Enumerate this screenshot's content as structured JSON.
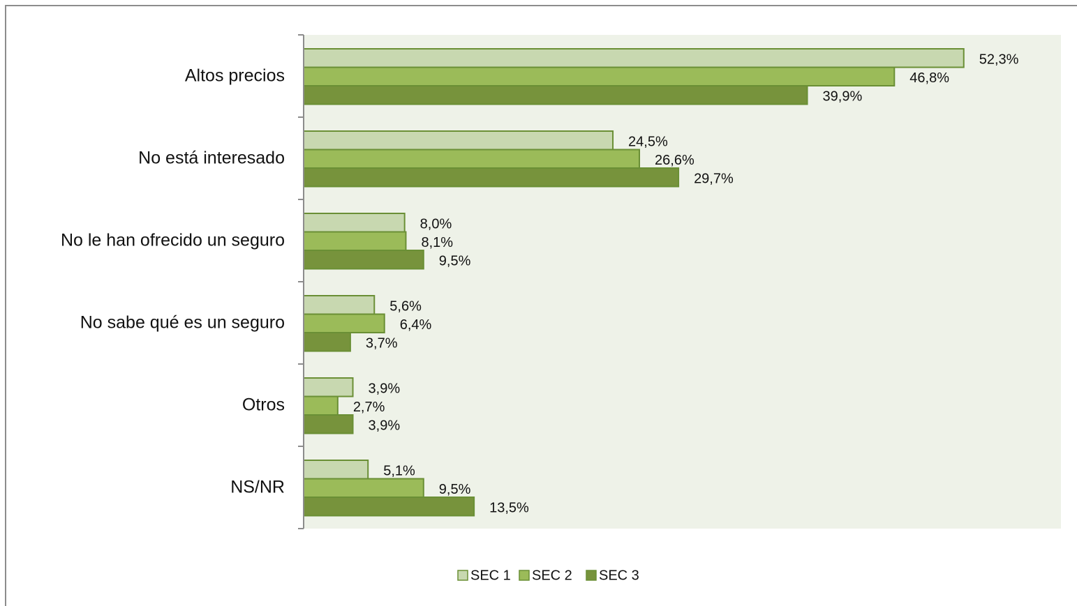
{
  "chart_data": {
    "type": "bar",
    "orientation": "horizontal",
    "categories": [
      "Altos precios",
      "No está interesado",
      "No le han ofrecido un seguro",
      "No sabe qué es un seguro",
      "Otros",
      "NS/NR"
    ],
    "series": [
      {
        "name": "SEC 1",
        "color": "#c8d8b0",
        "values": [
          52.3,
          24.5,
          8.0,
          5.6,
          3.9,
          5.1
        ],
        "value_labels": [
          "52,3%",
          "24,5%",
          "8,0%",
          "5,6%",
          "3,9%",
          "5,1%"
        ]
      },
      {
        "name": "SEC 2",
        "color": "#9bbb59",
        "values": [
          46.8,
          26.6,
          8.1,
          6.4,
          2.7,
          9.5
        ],
        "value_labels": [
          "46,8%",
          "26,6%",
          "8,1%",
          "6,4%",
          "2,7%",
          "9,5%"
        ]
      },
      {
        "name": "SEC 3",
        "color": "#77933c",
        "values": [
          39.9,
          29.7,
          9.5,
          3.7,
          3.9,
          13.5
        ],
        "value_labels": [
          "39,9%",
          "29,7%",
          "9,5%",
          "3,7%",
          "3,9%",
          "13,5%"
        ]
      }
    ],
    "xlim": [
      0,
      60
    ],
    "legend": "bottom"
  }
}
